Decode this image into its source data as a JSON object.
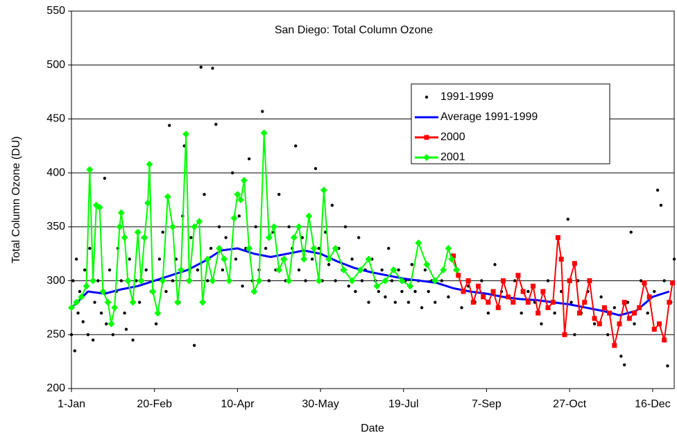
{
  "chart_data": {
    "type": "scatter-line",
    "title": "San Diego: Total Column Ozone",
    "x_label": "Date",
    "y_label": "Total Column Ozone (DU)",
    "xlim": [
      1,
      364
    ],
    "ylim": [
      200,
      550
    ],
    "xticks": [
      {
        "value": 1,
        "label": "1-Jan"
      },
      {
        "value": 51,
        "label": "20-Feb"
      },
      {
        "value": 101,
        "label": "10-Apr"
      },
      {
        "value": 151,
        "label": "30-May"
      },
      {
        "value": 201,
        "label": "19-Jul"
      },
      {
        "value": 251,
        "label": "7-Sep"
      },
      {
        "value": 301,
        "label": "27-Oct"
      },
      {
        "value": 351,
        "label": "16-Dec"
      }
    ],
    "yticks": [
      200,
      250,
      300,
      350,
      400,
      450,
      500,
      550
    ],
    "grid": true,
    "series": [
      {
        "name": "1991-1999",
        "color": "#000000",
        "marker": "circle",
        "line": false,
        "x": [
          1,
          2,
          3,
          4,
          5,
          6,
          8,
          9,
          11,
          12,
          14,
          15,
          17,
          19,
          21,
          22,
          24,
          26,
          28,
          29,
          31,
          33,
          34,
          36,
          38,
          40,
          42,
          44,
          46,
          49,
          52,
          54,
          56,
          58,
          60,
          62,
          64,
          66,
          68,
          69,
          71,
          73,
          75,
          77,
          79,
          81,
          83,
          85,
          86,
          88,
          90,
          92,
          94,
          96,
          98,
          100,
          102,
          104,
          106,
          108,
          110,
          112,
          114,
          116,
          118,
          120,
          122,
          124,
          126,
          128,
          130,
          132,
          134,
          136,
          138,
          140,
          142,
          144,
          146,
          148,
          150,
          152,
          154,
          156,
          158,
          160,
          162,
          164,
          166,
          168,
          170,
          172,
          174,
          176,
          178,
          180,
          182,
          184,
          186,
          188,
          190,
          192,
          194,
          196,
          198,
          200,
          202,
          204,
          206,
          208,
          210,
          212,
          214,
          216,
          218,
          220,
          224,
          228,
          232,
          236,
          240,
          244,
          248,
          252,
          256,
          260,
          264,
          268,
          272,
          276,
          280,
          284,
          288,
          292,
          296,
          300,
          302,
          304,
          306,
          308,
          312,
          316,
          320,
          324,
          328,
          332,
          334,
          336,
          338,
          340,
          344,
          348,
          352,
          354,
          356,
          358,
          360,
          362,
          364
        ],
        "values": [
          250,
          300,
          235,
          320,
          270,
          290,
          262,
          310,
          250,
          330,
          245,
          280,
          300,
          270,
          395,
          260,
          310,
          250,
          290,
          330,
          300,
          270,
          255,
          320,
          245,
          300,
          280,
          340,
          310,
          290,
          260,
          320,
          345,
          290,
          444,
          300,
          320,
          280,
          360,
          425,
          300,
          340,
          240,
          310,
          498,
          380,
          300,
          330,
          497,
          445,
          350,
          310,
          340,
          300,
          400,
          320,
          360,
          295,
          330,
          413,
          300,
          350,
          310,
          457,
          330,
          300,
          345,
          310,
          380,
          320,
          300,
          350,
          330,
          425,
          310,
          340,
          300,
          360,
          320,
          404,
          330,
          300,
          345,
          315,
          370,
          300,
          330,
          310,
          350,
          295,
          320,
          290,
          340,
          300,
          310,
          280,
          320,
          300,
          290,
          310,
          285,
          330,
          300,
          280,
          310,
          290,
          300,
          280,
          315,
          290,
          300,
          275,
          310,
          290,
          300,
          280,
          300,
          285,
          310,
          275,
          295,
          280,
          300,
          270,
          315,
          290,
          285,
          300,
          270,
          290,
          280,
          260,
          300,
          270,
          290,
          357,
          280,
          250,
          300,
          270,
          290,
          260,
          285,
          250,
          275,
          230,
          222,
          280,
          345,
          260,
          300,
          270,
          290,
          384,
          370,
          300,
          221,
          280,
          320
        ]
      },
      {
        "name": "Average 1991-1999",
        "color": "#0000ff",
        "line": true,
        "x": [
          1,
          11,
          21,
          31,
          41,
          51,
          61,
          71,
          81,
          91,
          101,
          111,
          121,
          131,
          141,
          151,
          161,
          171,
          181,
          191,
          201,
          211,
          221,
          231,
          241,
          251,
          261,
          271,
          281,
          291,
          301,
          311,
          321,
          331,
          341,
          351,
          361
        ],
        "values": [
          275,
          290,
          288,
          292,
          295,
          300,
          305,
          310,
          318,
          328,
          330,
          325,
          322,
          325,
          328,
          325,
          318,
          312,
          308,
          305,
          302,
          300,
          298,
          293,
          290,
          288,
          285,
          283,
          282,
          280,
          278,
          275,
          272,
          268,
          272,
          285,
          290
        ]
      },
      {
        "name": "2000",
        "color": "#ff0000",
        "marker": "square",
        "line": true,
        "x": [
          231,
          234,
          237,
          240,
          243,
          246,
          249,
          252,
          255,
          258,
          261,
          264,
          267,
          270,
          273,
          276,
          279,
          282,
          285,
          288,
          291,
          294,
          296,
          298,
          301,
          304,
          307,
          310,
          313,
          316,
          319,
          322,
          325,
          328,
          331,
          334,
          337,
          340,
          343,
          346,
          349,
          352,
          355,
          358,
          361,
          363
        ],
        "values": [
          323,
          305,
          290,
          300,
          280,
          295,
          285,
          280,
          290,
          275,
          300,
          285,
          280,
          305,
          290,
          280,
          295,
          270,
          290,
          275,
          280,
          340,
          320,
          250,
          300,
          316,
          270,
          280,
          300,
          265,
          260,
          275,
          270,
          240,
          260,
          280,
          265,
          270,
          275,
          298,
          285,
          255,
          260,
          245,
          280,
          298
        ]
      },
      {
        "name": "2001",
        "color": "#00ff00",
        "marker": "diamond",
        "line": true,
        "x": [
          1,
          4,
          7,
          10,
          12,
          14,
          16,
          18,
          20,
          23,
          25,
          27,
          30,
          31,
          33,
          35,
          38,
          41,
          43,
          45,
          47,
          48,
          50,
          53,
          56,
          59,
          62,
          65,
          67,
          70,
          72,
          75,
          78,
          80,
          83,
          86,
          90,
          93,
          96,
          99,
          101,
          103,
          105,
          108,
          111,
          114,
          117,
          120,
          123,
          126,
          129,
          132,
          135,
          138,
          141,
          144,
          147,
          150,
          153,
          156,
          160,
          165,
          170,
          175,
          180,
          185,
          190,
          195,
          200,
          205,
          210,
          215,
          220,
          225,
          228,
          230,
          233
        ],
        "values": [
          275,
          280,
          285,
          295,
          403,
          300,
          370,
          368,
          290,
          280,
          260,
          275,
          350,
          363,
          340,
          300,
          280,
          345,
          300,
          340,
          372,
          408,
          290,
          270,
          300,
          378,
          350,
          280,
          310,
          436,
          300,
          350,
          355,
          280,
          320,
          300,
          330,
          320,
          300,
          358,
          380,
          375,
          393,
          330,
          290,
          300,
          437,
          340,
          350,
          310,
          320,
          300,
          340,
          350,
          320,
          360,
          330,
          300,
          384,
          320,
          330,
          310,
          300,
          310,
          320,
          295,
          300,
          310,
          300,
          295,
          335,
          315,
          300,
          310,
          330,
          320,
          310
        ]
      }
    ]
  }
}
